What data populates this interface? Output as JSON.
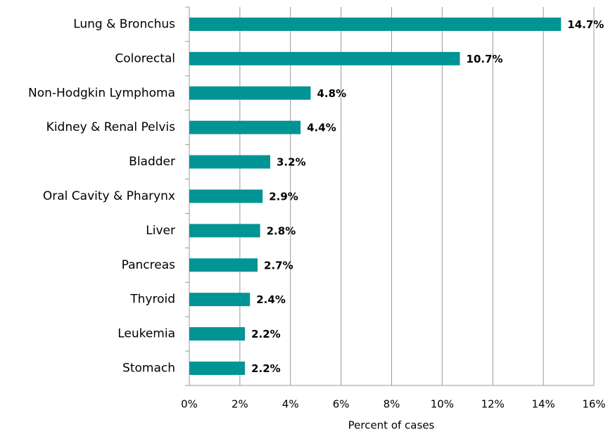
{
  "chart_data": {
    "type": "bar",
    "orientation": "horizontal",
    "x_label": "Percent of cases",
    "categories": [
      "Lung & Bronchus",
      "Colorectal",
      "Non-Hodgkin Lymphoma",
      "Kidney & Renal Pelvis",
      "Bladder",
      "Oral Cavity & Pharynx",
      "Liver",
      "Pancreas",
      "Thyroid",
      "Leukemia",
      "Stomach"
    ],
    "values": [
      14.7,
      10.7,
      4.8,
      4.4,
      3.2,
      2.9,
      2.8,
      2.7,
      2.4,
      2.2,
      2.2
    ],
    "value_labels": [
      "14.7%",
      "10.7%",
      "4.8%",
      "4.4%",
      "3.2%",
      "2.9%",
      "2.8%",
      "2.7%",
      "2.4%",
      "2.2%",
      "2.2%"
    ],
    "color": "#009494",
    "xlim": [
      0,
      16
    ],
    "xticks": [
      {
        "value": 0,
        "label": "0%"
      },
      {
        "value": 2,
        "label": "2%"
      },
      {
        "value": 4,
        "label": "4%"
      },
      {
        "value": 6,
        "label": "6%"
      },
      {
        "value": 8,
        "label": "8%"
      },
      {
        "value": 10,
        "label": "10%"
      },
      {
        "value": 12,
        "label": "12%"
      },
      {
        "value": 14,
        "label": "14%"
      },
      {
        "value": 16,
        "label": "16%"
      }
    ],
    "grid": true
  }
}
